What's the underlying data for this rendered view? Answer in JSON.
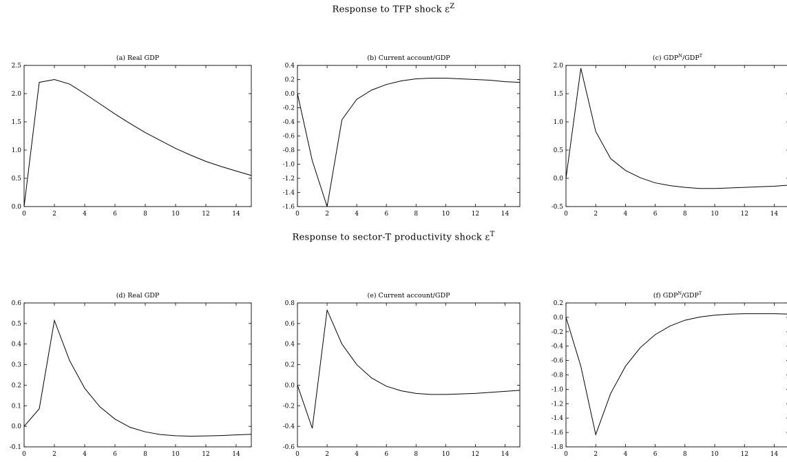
{
  "row_titles": [
    {
      "text": "Response to TFP shock ε",
      "sup": "Z"
    },
    {
      "text": "Response to sector-T productivity shock ε",
      "sup": "T"
    }
  ],
  "chart_data": [
    {
      "type": "line",
      "title": "(a) Real GDP",
      "title_sup": null,
      "x": [
        0,
        1,
        2,
        3,
        4,
        5,
        6,
        7,
        8,
        9,
        10,
        11,
        12,
        13,
        14,
        15
      ],
      "values": [
        0.0,
        2.2,
        2.25,
        2.17,
        2.0,
        1.82,
        1.64,
        1.47,
        1.31,
        1.17,
        1.03,
        0.91,
        0.8,
        0.71,
        0.63,
        0.55
      ],
      "xlim": [
        0,
        15
      ],
      "ylim": [
        0.0,
        2.5
      ],
      "xticks": [
        0,
        2,
        4,
        6,
        8,
        10,
        12,
        14
      ],
      "yticks": [
        0.0,
        0.5,
        1.0,
        1.5,
        2.0,
        2.5
      ],
      "ytick_labels": [
        "0.0",
        "0.5",
        "1.0",
        "1.5",
        "2.0",
        "2.5"
      ]
    },
    {
      "type": "line",
      "title": "(b) Current account/GDP",
      "title_sup": null,
      "x": [
        0,
        1,
        2,
        3,
        4,
        5,
        6,
        7,
        8,
        9,
        10,
        11,
        12,
        13,
        14,
        15
      ],
      "values": [
        0.0,
        -0.95,
        -1.6,
        -0.37,
        -0.08,
        0.05,
        0.13,
        0.18,
        0.21,
        0.22,
        0.22,
        0.21,
        0.2,
        0.19,
        0.17,
        0.16
      ],
      "xlim": [
        0,
        15
      ],
      "ylim": [
        -1.6,
        0.4
      ],
      "xticks": [
        0,
        2,
        4,
        6,
        8,
        10,
        12,
        14
      ],
      "yticks": [
        -1.6,
        -1.4,
        -1.2,
        -1.0,
        -0.8,
        -0.6,
        -0.4,
        -0.2,
        0.0,
        0.2,
        0.4
      ],
      "ytick_labels": [
        "-1.6",
        "-1.4",
        "-1.2",
        "-1.0",
        "-0.8",
        "-0.6",
        "-0.4",
        "-0.2",
        "0.0",
        "0.2",
        "0.4"
      ]
    },
    {
      "type": "line",
      "title": "(c) GDP",
      "title_sup": "N",
      "title_rest": "/GDP",
      "title_sup2": "T",
      "x": [
        0,
        1,
        2,
        3,
        4,
        5,
        6,
        7,
        8,
        9,
        10,
        11,
        12,
        13,
        14,
        15
      ],
      "values": [
        0.0,
        1.95,
        0.83,
        0.35,
        0.14,
        0.01,
        -0.08,
        -0.13,
        -0.16,
        -0.18,
        -0.18,
        -0.17,
        -0.16,
        -0.15,
        -0.14,
        -0.12
      ],
      "xlim": [
        0,
        15
      ],
      "ylim": [
        -0.5,
        2.0
      ],
      "xticks": [
        0,
        2,
        4,
        6,
        8,
        10,
        12,
        14
      ],
      "yticks": [
        -0.5,
        0.0,
        0.5,
        1.0,
        1.5,
        2.0
      ],
      "ytick_labels": [
        "-0.5",
        "0.0",
        "0.5",
        "1.0",
        "1.5",
        "2.0"
      ]
    },
    {
      "type": "line",
      "title": "(d) Real GDP",
      "title_sup": null,
      "x": [
        0,
        1,
        2,
        3,
        4,
        5,
        6,
        7,
        8,
        9,
        10,
        11,
        12,
        13,
        14,
        15
      ],
      "values": [
        0.0,
        0.085,
        0.515,
        0.32,
        0.185,
        0.095,
        0.035,
        -0.005,
        -0.027,
        -0.04,
        -0.046,
        -0.048,
        -0.047,
        -0.045,
        -0.042,
        -0.039
      ],
      "xlim": [
        0,
        15
      ],
      "ylim": [
        -0.1,
        0.6
      ],
      "xticks": [
        0,
        2,
        4,
        6,
        8,
        10,
        12,
        14
      ],
      "yticks": [
        -0.1,
        0.0,
        0.1,
        0.2,
        0.3,
        0.4,
        0.5,
        0.6
      ],
      "ytick_labels": [
        "-0.1",
        "0.0",
        "0.1",
        "0.2",
        "0.3",
        "0.4",
        "0.5",
        "0.6"
      ]
    },
    {
      "type": "line",
      "title": "(e) Current account/GDP",
      "title_sup": null,
      "x": [
        0,
        1,
        2,
        3,
        4,
        5,
        6,
        7,
        8,
        9,
        10,
        11,
        12,
        13,
        14,
        15
      ],
      "values": [
        0.0,
        -0.42,
        0.73,
        0.4,
        0.2,
        0.07,
        -0.01,
        -0.055,
        -0.08,
        -0.09,
        -0.09,
        -0.085,
        -0.08,
        -0.07,
        -0.06,
        -0.05
      ],
      "xlim": [
        0,
        15
      ],
      "ylim": [
        -0.6,
        0.8
      ],
      "xticks": [
        0,
        2,
        4,
        6,
        8,
        10,
        12,
        14
      ],
      "yticks": [
        -0.6,
        -0.4,
        -0.2,
        0.0,
        0.2,
        0.4,
        0.6,
        0.8
      ],
      "ytick_labels": [
        "-0.6",
        "-0.4",
        "-0.2",
        "0.0",
        "0.2",
        "0.4",
        "0.6",
        "0.8"
      ]
    },
    {
      "type": "line",
      "title": "(f) GDP",
      "title_sup": "N",
      "title_rest": "/GDP",
      "title_sup2": "T",
      "x": [
        0,
        1,
        2,
        3,
        4,
        5,
        6,
        7,
        8,
        9,
        10,
        11,
        12,
        13,
        14,
        15
      ],
      "values": [
        0.0,
        -0.68,
        -1.63,
        -1.06,
        -0.68,
        -0.42,
        -0.24,
        -0.12,
        -0.04,
        0.005,
        0.03,
        0.045,
        0.05,
        0.05,
        0.05,
        0.045
      ],
      "xlim": [
        0,
        15
      ],
      "ylim": [
        -1.8,
        0.2
      ],
      "xticks": [
        0,
        2,
        4,
        6,
        8,
        10,
        12,
        14
      ],
      "yticks": [
        -1.8,
        -1.6,
        -1.4,
        -1.2,
        -1.0,
        -0.8,
        -0.6,
        -0.4,
        -0.2,
        0.0,
        0.2
      ],
      "ytick_labels": [
        "-1.8",
        "-1.6",
        "-1.4",
        "-1.2",
        "-1.0",
        "-0.8",
        "-0.6",
        "-0.4",
        "-0.2",
        "0.0",
        "0.2"
      ]
    }
  ]
}
